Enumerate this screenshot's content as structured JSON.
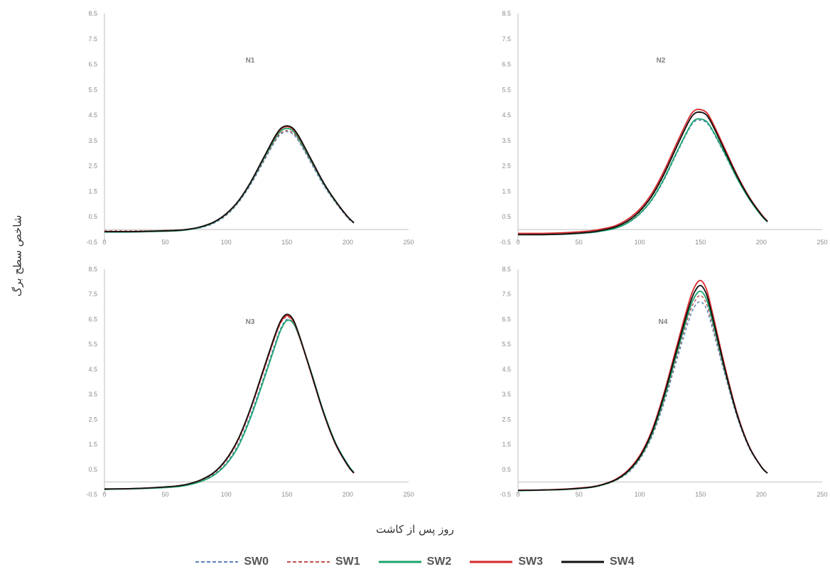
{
  "y_axis_label": "شاخص سطح برگ",
  "x_axis_label": "روز پس از کاشت",
  "series_styles": [
    {
      "name": "SW0",
      "color": "#5b7fb8",
      "dash": true
    },
    {
      "name": "SW1",
      "color": "#c0504d",
      "dash": true
    },
    {
      "name": "SW2",
      "color": "#1ca56f",
      "dash": false
    },
    {
      "name": "SW3",
      "color": "#d62728",
      "dash": false
    },
    {
      "name": "SW4",
      "color": "#111111",
      "dash": false
    }
  ],
  "chart_data": [
    {
      "type": "line",
      "title": "N1",
      "xlim": [
        0,
        250
      ],
      "ylim": [
        -0.5,
        8.5
      ],
      "x_ticks": [
        "0",
        "50",
        "100",
        "150",
        "200",
        "250"
      ],
      "y_ticks": [
        "-0.5",
        "0.5",
        "1.5",
        "2.5",
        "3.5",
        "4.5",
        "5.5",
        "6.5",
        "7.5",
        "8.5"
      ],
      "x": [
        0,
        20,
        40,
        60,
        70,
        80,
        90,
        100,
        110,
        120,
        130,
        140,
        145,
        150,
        155,
        160,
        170,
        180,
        190,
        200,
        205
      ],
      "series": [
        {
          "name": "SW0",
          "values": [
            -0.1,
            -0.1,
            -0.08,
            -0.05,
            0.0,
            0.08,
            0.25,
            0.55,
            1.05,
            1.75,
            2.6,
            3.45,
            3.75,
            3.85,
            3.75,
            3.45,
            2.6,
            1.75,
            1.05,
            0.45,
            0.25
          ]
        },
        {
          "name": "SW1",
          "values": [
            -0.05,
            -0.05,
            -0.05,
            -0.02,
            0.02,
            0.1,
            0.28,
            0.58,
            1.08,
            1.8,
            2.65,
            3.5,
            3.8,
            3.9,
            3.8,
            3.5,
            2.65,
            1.8,
            1.08,
            0.48,
            0.26
          ]
        },
        {
          "name": "SW2",
          "values": [
            -0.1,
            -0.1,
            -0.08,
            -0.05,
            0.0,
            0.1,
            0.28,
            0.6,
            1.1,
            1.82,
            2.7,
            3.55,
            3.88,
            3.98,
            3.88,
            3.55,
            2.7,
            1.82,
            1.1,
            0.5,
            0.27
          ]
        },
        {
          "name": "SW3",
          "values": [
            -0.08,
            -0.08,
            -0.06,
            -0.03,
            0.02,
            0.12,
            0.3,
            0.62,
            1.12,
            1.85,
            2.75,
            3.62,
            3.95,
            4.05,
            3.95,
            3.62,
            2.75,
            1.85,
            1.12,
            0.5,
            0.27
          ]
        },
        {
          "name": "SW4",
          "values": [
            -0.08,
            -0.08,
            -0.06,
            -0.03,
            0.02,
            0.12,
            0.3,
            0.62,
            1.12,
            1.85,
            2.75,
            3.65,
            3.98,
            4.08,
            3.98,
            3.65,
            2.75,
            1.85,
            1.12,
            0.5,
            0.27
          ]
        }
      ]
    },
    {
      "type": "line",
      "title": "N2",
      "xlim": [
        0,
        250
      ],
      "ylim": [
        -0.5,
        8.5
      ],
      "x_ticks": [
        "0",
        "50",
        "100",
        "150",
        "200",
        "250"
      ],
      "y_ticks": [
        "-0.5",
        "0.5",
        "1.5",
        "2.5",
        "3.5",
        "4.5",
        "5.5",
        "6.5",
        "7.5",
        "8.5"
      ],
      "x": [
        0,
        20,
        40,
        60,
        70,
        80,
        90,
        100,
        110,
        120,
        130,
        140,
        145,
        150,
        155,
        160,
        170,
        180,
        190,
        200,
        205
      ],
      "series": [
        {
          "name": "SW0",
          "values": [
            -0.2,
            -0.2,
            -0.18,
            -0.12,
            -0.05,
            0.05,
            0.25,
            0.6,
            1.15,
            1.95,
            2.95,
            3.9,
            4.25,
            4.3,
            4.2,
            3.85,
            2.95,
            2.0,
            1.2,
            0.55,
            0.3
          ]
        },
        {
          "name": "SW1",
          "values": [
            -0.2,
            -0.2,
            -0.17,
            -0.1,
            -0.02,
            0.1,
            0.32,
            0.7,
            1.3,
            2.15,
            3.2,
            4.2,
            4.55,
            4.6,
            4.5,
            4.1,
            3.1,
            2.1,
            1.25,
            0.58,
            0.32
          ]
        },
        {
          "name": "SW2",
          "values": [
            -0.2,
            -0.2,
            -0.18,
            -0.12,
            -0.05,
            0.05,
            0.26,
            0.62,
            1.18,
            2.0,
            3.0,
            3.95,
            4.3,
            4.35,
            4.25,
            3.9,
            3.0,
            2.02,
            1.2,
            0.55,
            0.3
          ]
        },
        {
          "name": "SW3",
          "values": [
            -0.15,
            -0.15,
            -0.12,
            -0.05,
            0.03,
            0.15,
            0.4,
            0.8,
            1.42,
            2.3,
            3.35,
            4.35,
            4.68,
            4.72,
            4.6,
            4.2,
            3.18,
            2.15,
            1.28,
            0.6,
            0.33
          ]
        },
        {
          "name": "SW4",
          "values": [
            -0.2,
            -0.2,
            -0.17,
            -0.1,
            -0.02,
            0.1,
            0.33,
            0.72,
            1.32,
            2.18,
            3.22,
            4.22,
            4.56,
            4.62,
            4.5,
            4.1,
            3.1,
            2.1,
            1.25,
            0.58,
            0.32
          ]
        }
      ]
    },
    {
      "type": "line",
      "title": "N3",
      "xlim": [
        0,
        250
      ],
      "ylim": [
        -0.5,
        8.5
      ],
      "x_ticks": [
        "0",
        "50",
        "100",
        "150",
        "200",
        "250"
      ],
      "y_ticks": [
        "-0.5",
        "0.5",
        "1.5",
        "2.5",
        "3.5",
        "4.5",
        "5.5",
        "6.5",
        "7.5",
        "8.5"
      ],
      "x": [
        0,
        20,
        40,
        60,
        70,
        80,
        90,
        100,
        110,
        120,
        130,
        140,
        145,
        150,
        155,
        160,
        170,
        180,
        190,
        200,
        205
      ],
      "series": [
        {
          "name": "SW0",
          "values": [
            -0.3,
            -0.28,
            -0.25,
            -0.18,
            -0.1,
            0.05,
            0.3,
            0.75,
            1.5,
            2.65,
            4.05,
            5.5,
            6.15,
            6.5,
            6.35,
            5.8,
            4.35,
            2.8,
            1.55,
            0.7,
            0.38
          ]
        },
        {
          "name": "SW1",
          "values": [
            -0.28,
            -0.27,
            -0.24,
            -0.17,
            -0.08,
            0.08,
            0.35,
            0.85,
            1.65,
            2.85,
            4.3,
            5.75,
            6.35,
            6.6,
            6.4,
            5.8,
            4.3,
            2.75,
            1.5,
            0.65,
            0.35
          ]
        },
        {
          "name": "SW2",
          "values": [
            -0.3,
            -0.28,
            -0.25,
            -0.19,
            -0.11,
            0.03,
            0.27,
            0.7,
            1.42,
            2.55,
            3.95,
            5.4,
            6.08,
            6.45,
            6.35,
            5.82,
            4.38,
            2.82,
            1.55,
            0.7,
            0.38
          ]
        },
        {
          "name": "SW3",
          "values": [
            -0.28,
            -0.27,
            -0.23,
            -0.16,
            -0.07,
            0.09,
            0.37,
            0.88,
            1.7,
            2.9,
            4.35,
            5.8,
            6.4,
            6.65,
            6.45,
            5.85,
            4.32,
            2.76,
            1.5,
            0.65,
            0.35
          ]
        },
        {
          "name": "SW4",
          "values": [
            -0.28,
            -0.27,
            -0.23,
            -0.16,
            -0.07,
            0.1,
            0.38,
            0.9,
            1.72,
            2.93,
            4.4,
            5.85,
            6.45,
            6.7,
            6.5,
            5.88,
            4.35,
            2.78,
            1.52,
            0.66,
            0.36
          ]
        }
      ]
    },
    {
      "type": "line",
      "title": "N4",
      "xlim": [
        0,
        250
      ],
      "ylim": [
        -0.5,
        8.5
      ],
      "x_ticks": [
        "0",
        "50",
        "100",
        "150",
        "200",
        "250"
      ],
      "y_ticks": [
        "-0.5",
        "0.5",
        "1.5",
        "2.5",
        "3.5",
        "4.5",
        "5.5",
        "6.5",
        "7.5",
        "8.5"
      ],
      "x": [
        0,
        20,
        40,
        60,
        70,
        80,
        90,
        100,
        110,
        120,
        130,
        140,
        145,
        150,
        155,
        160,
        170,
        180,
        190,
        200,
        205
      ],
      "series": [
        {
          "name": "SW0",
          "values": [
            -0.35,
            -0.33,
            -0.3,
            -0.22,
            -0.12,
            0.05,
            0.35,
            0.9,
            1.8,
            3.15,
            4.8,
            6.4,
            7.0,
            7.2,
            6.9,
            6.1,
            4.3,
            2.6,
            1.35,
            0.6,
            0.35
          ]
        },
        {
          "name": "SW1",
          "values": [
            -0.35,
            -0.33,
            -0.3,
            -0.22,
            -0.12,
            0.06,
            0.37,
            0.93,
            1.85,
            3.25,
            4.95,
            6.6,
            7.2,
            7.45,
            7.1,
            6.25,
            4.38,
            2.65,
            1.38,
            0.6,
            0.35
          ]
        },
        {
          "name": "SW2",
          "values": [
            -0.35,
            -0.33,
            -0.3,
            -0.22,
            -0.11,
            0.07,
            0.39,
            0.96,
            1.9,
            3.32,
            5.05,
            6.75,
            7.38,
            7.62,
            7.28,
            6.4,
            4.45,
            2.68,
            1.4,
            0.6,
            0.35
          ]
        },
        {
          "name": "SW3",
          "values": [
            -0.33,
            -0.32,
            -0.28,
            -0.2,
            -0.09,
            0.1,
            0.45,
            1.05,
            2.05,
            3.55,
            5.35,
            7.1,
            7.78,
            8.05,
            7.68,
            6.72,
            4.62,
            2.75,
            1.42,
            0.61,
            0.35
          ]
        },
        {
          "name": "SW4",
          "values": [
            -0.34,
            -0.32,
            -0.29,
            -0.21,
            -0.1,
            0.08,
            0.42,
            1.0,
            1.98,
            3.45,
            5.2,
            6.92,
            7.58,
            7.85,
            7.48,
            6.56,
            4.52,
            2.7,
            1.4,
            0.6,
            0.35
          ]
        }
      ]
    }
  ]
}
